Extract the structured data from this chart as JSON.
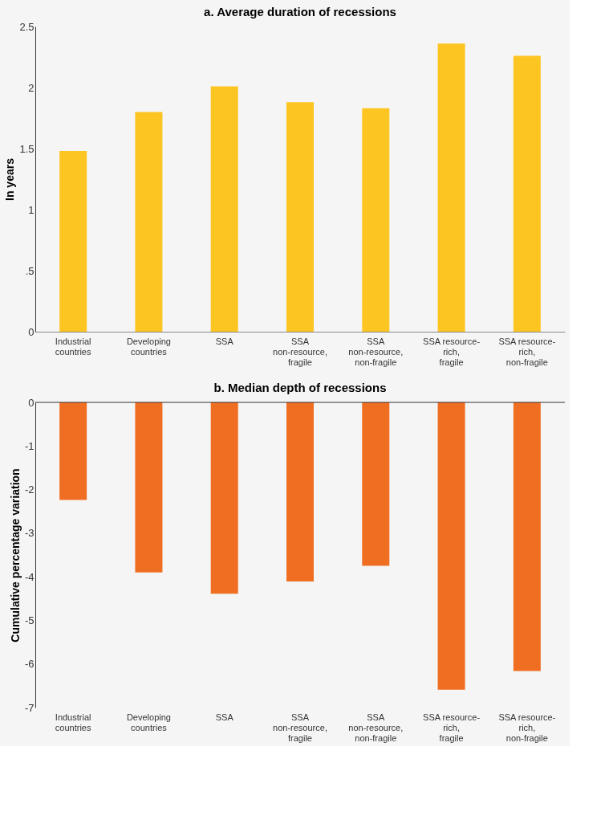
{
  "chart_data": [
    {
      "type": "bar",
      "title": "a. Average duration of recessions",
      "ylabel": "In years",
      "categories": [
        "Industrial\ncountries",
        "Developing\ncountries",
        "SSA",
        "SSA\nnon-resource,\nfragile",
        "SSA\nnon-resource,\nnon-fragile",
        "SSA resource-\nrich,\nfragile",
        "SSA resource-\nrich,\nnon-fragile"
      ],
      "values": [
        1.48,
        1.8,
        2.01,
        1.88,
        1.83,
        2.36,
        2.26
      ],
      "color": "#fdc521",
      "ylim": [
        0,
        2.5
      ],
      "yticks": [
        0,
        {
          "value": 0.5,
          "label": ".5"
        },
        1,
        1.5,
        2,
        2.5
      ],
      "grid": false
    },
    {
      "type": "bar",
      "title": "b. Median depth of recessions",
      "ylabel": "Cumulative percentage variation",
      "categories": [
        "Industrial\ncountries",
        "Developing\ncountries",
        "SSA",
        "SSA\nnon-resource,\nfragile",
        "SSA\nnon-resource,\nnon-fragile",
        "SSA resource-\nrich,\nfragile",
        "SSA resource-\nrich,\nnon-fragile"
      ],
      "values": [
        -2.24,
        -3.9,
        -4.39,
        -4.11,
        -3.75,
        -6.59,
        -6.16
      ],
      "color": "#f06e22",
      "ylim": [
        -7,
        0
      ],
      "yticks": [
        0,
        -1,
        -2,
        -3,
        -4,
        -5,
        -6,
        -7
      ],
      "grid": false
    }
  ]
}
